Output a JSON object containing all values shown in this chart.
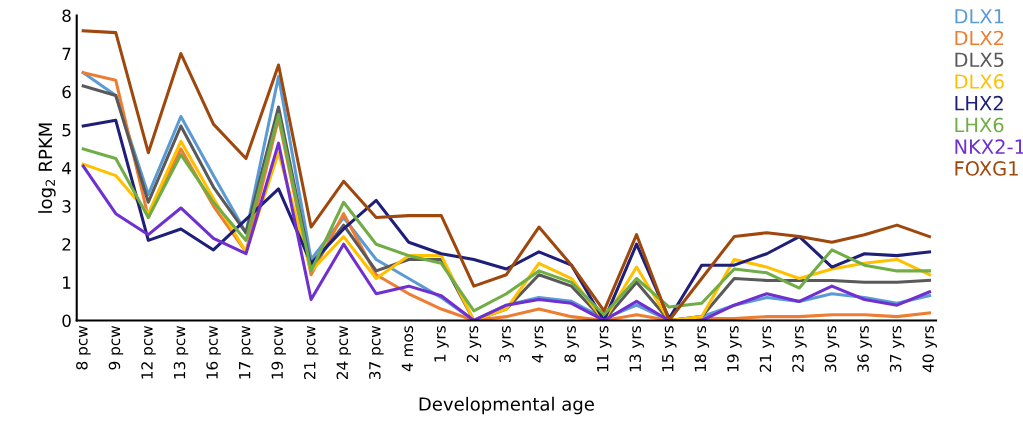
{
  "chart_data": {
    "type": "line",
    "xlabel": "Developmental age",
    "ylabel": "log$_{2}$ RPKM",
    "categories": [
      "8 pcw",
      "9 pcw",
      "12 pcw",
      "13 pcw",
      "16 pcw",
      "17 pcw",
      "19 pcw",
      "21 pcw",
      "24 pcw",
      "37 pcw",
      "4 mos",
      "1 yrs",
      "2 yrs",
      "3 yrs",
      "4 yrs",
      "8 yrs",
      "11 yrs",
      "13 yrs",
      "15 yrs",
      "18 yrs",
      "19 yrs",
      "21 yrs",
      "23 yrs",
      "30 yrs",
      "36 yrs",
      "37 yrs",
      "40 yrs"
    ],
    "ylim": [
      0,
      8
    ],
    "yticks": [
      0,
      1,
      2,
      3,
      4,
      5,
      6,
      7,
      8
    ],
    "grid": false,
    "legend": "top right",
    "marker": "none",
    "line_style": "solid",
    "series": [
      {
        "name": "DLX1",
        "color": "#5b9bd5",
        "values": [
          6.5,
          5.9,
          3.3,
          5.35,
          3.8,
          2.3,
          6.4,
          1.6,
          2.7,
          1.6,
          1.1,
          0.6,
          0,
          0.4,
          0.6,
          0.5,
          0.05,
          0.4,
          0,
          0.1,
          0.4,
          0.6,
          0.5,
          0.7,
          0.6,
          0.45,
          0.65
        ]
      },
      {
        "name": "DLX2",
        "color": "#ed7d31",
        "values": [
          6.5,
          6.3,
          2.7,
          4.5,
          3.0,
          1.8,
          5.3,
          1.2,
          2.8,
          1.2,
          0.7,
          0.3,
          0,
          0.1,
          0.3,
          0.1,
          0,
          0.15,
          0,
          0.05,
          0.05,
          0.1,
          0.1,
          0.15,
          0.15,
          0.1,
          0.2
        ]
      },
      {
        "name": "DLX5",
        "color": "#595959",
        "values": [
          6.15,
          5.9,
          3.1,
          5.1,
          3.5,
          2.3,
          5.6,
          1.4,
          2.5,
          1.3,
          1.6,
          1.6,
          0,
          0.3,
          1.2,
          0.9,
          0,
          1.0,
          0,
          0.1,
          1.1,
          1.05,
          1.05,
          1.05,
          1.0,
          1.0,
          1.05
        ]
      },
      {
        "name": "DLX6",
        "color": "#ffc000",
        "values": [
          4.1,
          3.8,
          2.8,
          4.7,
          3.2,
          1.8,
          4.4,
          1.3,
          2.2,
          1.1,
          1.7,
          1.7,
          0,
          0.3,
          1.5,
          1.1,
          0,
          1.4,
          0,
          0.1,
          1.6,
          1.4,
          1.1,
          1.35,
          1.5,
          1.6,
          1.2
        ]
      },
      {
        "name": "LHX2",
        "color": "#1f1f7a",
        "values": [
          5.1,
          5.25,
          2.1,
          2.4,
          1.85,
          2.65,
          3.45,
          1.5,
          2.4,
          3.15,
          2.05,
          1.75,
          1.6,
          1.35,
          1.8,
          1.45,
          0,
          2.0,
          0.05,
          1.45,
          1.45,
          1.75,
          2.2,
          1.4,
          1.75,
          1.7,
          1.8
        ]
      },
      {
        "name": "LHX6",
        "color": "#70ad47",
        "values": [
          4.5,
          4.25,
          2.7,
          4.35,
          3.1,
          2.1,
          5.4,
          1.3,
          3.1,
          2.0,
          1.7,
          1.5,
          0.25,
          0.7,
          1.3,
          1.0,
          0.15,
          1.1,
          0.35,
          0.45,
          1.35,
          1.25,
          0.85,
          1.85,
          1.45,
          1.3,
          1.3
        ]
      },
      {
        "name": "NKX2-1",
        "color": "#7030d0",
        "values": [
          4.05,
          2.8,
          2.25,
          2.95,
          2.15,
          1.75,
          4.65,
          0.55,
          2.0,
          0.7,
          0.9,
          0.65,
          0,
          0.4,
          0.55,
          0.45,
          0,
          0.5,
          0,
          0,
          0.4,
          0.7,
          0.5,
          0.9,
          0.55,
          0.4,
          0.75
        ]
      },
      {
        "name": "FOXG1",
        "color": "#9e480e",
        "values": [
          7.6,
          7.55,
          4.4,
          7.0,
          5.15,
          4.25,
          6.7,
          2.45,
          3.65,
          2.7,
          2.75,
          2.75,
          0.9,
          1.2,
          2.45,
          1.45,
          0.25,
          2.25,
          0,
          1.1,
          2.2,
          2.3,
          2.2,
          2.05,
          2.25,
          2.5,
          2.2
        ]
      }
    ]
  }
}
